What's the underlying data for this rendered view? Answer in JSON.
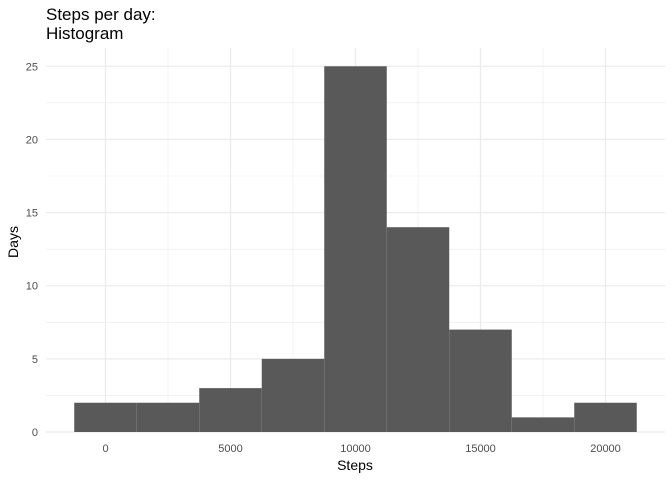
{
  "chart_data": {
    "type": "bar",
    "title_lines": [
      "Steps per day:",
      "Histogram"
    ],
    "xlabel": "Steps",
    "ylabel": "Days",
    "bins": [
      {
        "x0": -1250,
        "x1": 1250,
        "count": 2
      },
      {
        "x0": 1250,
        "x1": 3750,
        "count": 2
      },
      {
        "x0": 3750,
        "x1": 6250,
        "count": 3
      },
      {
        "x0": 6250,
        "x1": 8750,
        "count": 5
      },
      {
        "x0": 8750,
        "x1": 11250,
        "count": 25
      },
      {
        "x0": 11250,
        "x1": 13750,
        "count": 14
      },
      {
        "x0": 13750,
        "x1": 16250,
        "count": 7
      },
      {
        "x0": 16250,
        "x1": 18750,
        "count": 1
      },
      {
        "x0": 18750,
        "x1": 21250,
        "count": 2
      }
    ],
    "xticks": [
      0,
      5000,
      10000,
      15000,
      20000
    ],
    "yticks": [
      0,
      5,
      10,
      15,
      20,
      25
    ],
    "xlim": [
      -2380,
      22380
    ],
    "ylim": [
      0,
      26.25
    ],
    "grid": true,
    "colors": {
      "bar": "#595959",
      "grid": "#ebebeb",
      "background": "#ffffff"
    }
  }
}
